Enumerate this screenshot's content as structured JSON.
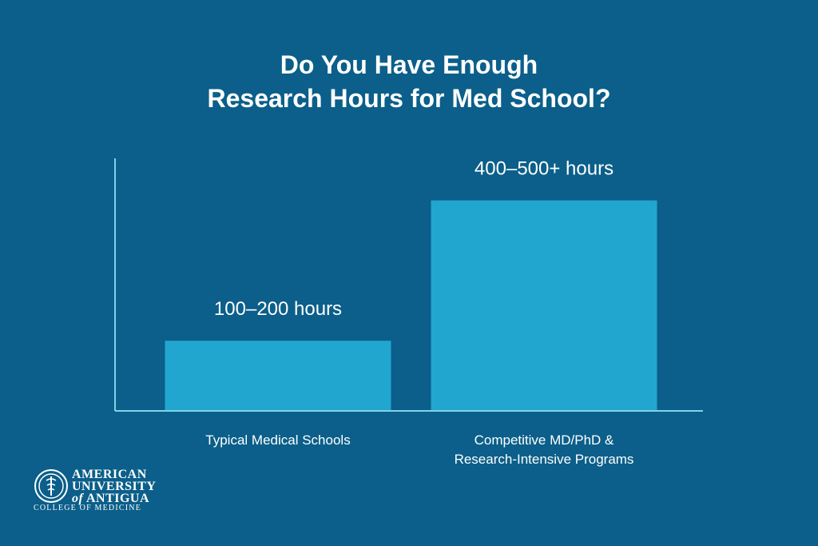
{
  "title_line1": "Do You Have Enough",
  "title_line2": "Research Hours for Med School?",
  "colors": {
    "background": "#0b5f8a",
    "bar": "#21a6cf",
    "axis": "#7fd3ea",
    "text": "#ffffff"
  },
  "chart_data": {
    "type": "bar",
    "categories": [
      [
        "Typical Medical Schools"
      ],
      [
        "Competitive MD/PhD &",
        "Research-Intensive Programs"
      ]
    ],
    "values": [
      150,
      450
    ],
    "data_labels": [
      "100–200 hours",
      "400–500+ hours"
    ],
    "ylim": [
      0,
      540
    ],
    "grid": false,
    "title": "Do You Have Enough Research Hours for Med School?"
  },
  "logo": {
    "line1": "AMERICAN",
    "line2": "UNIVERSITY",
    "line3_of": "of",
    "line3": "ANTIGUA",
    "subtitle": "COLLEGE OF MEDICINE",
    "icon": "university-seal-icon"
  }
}
